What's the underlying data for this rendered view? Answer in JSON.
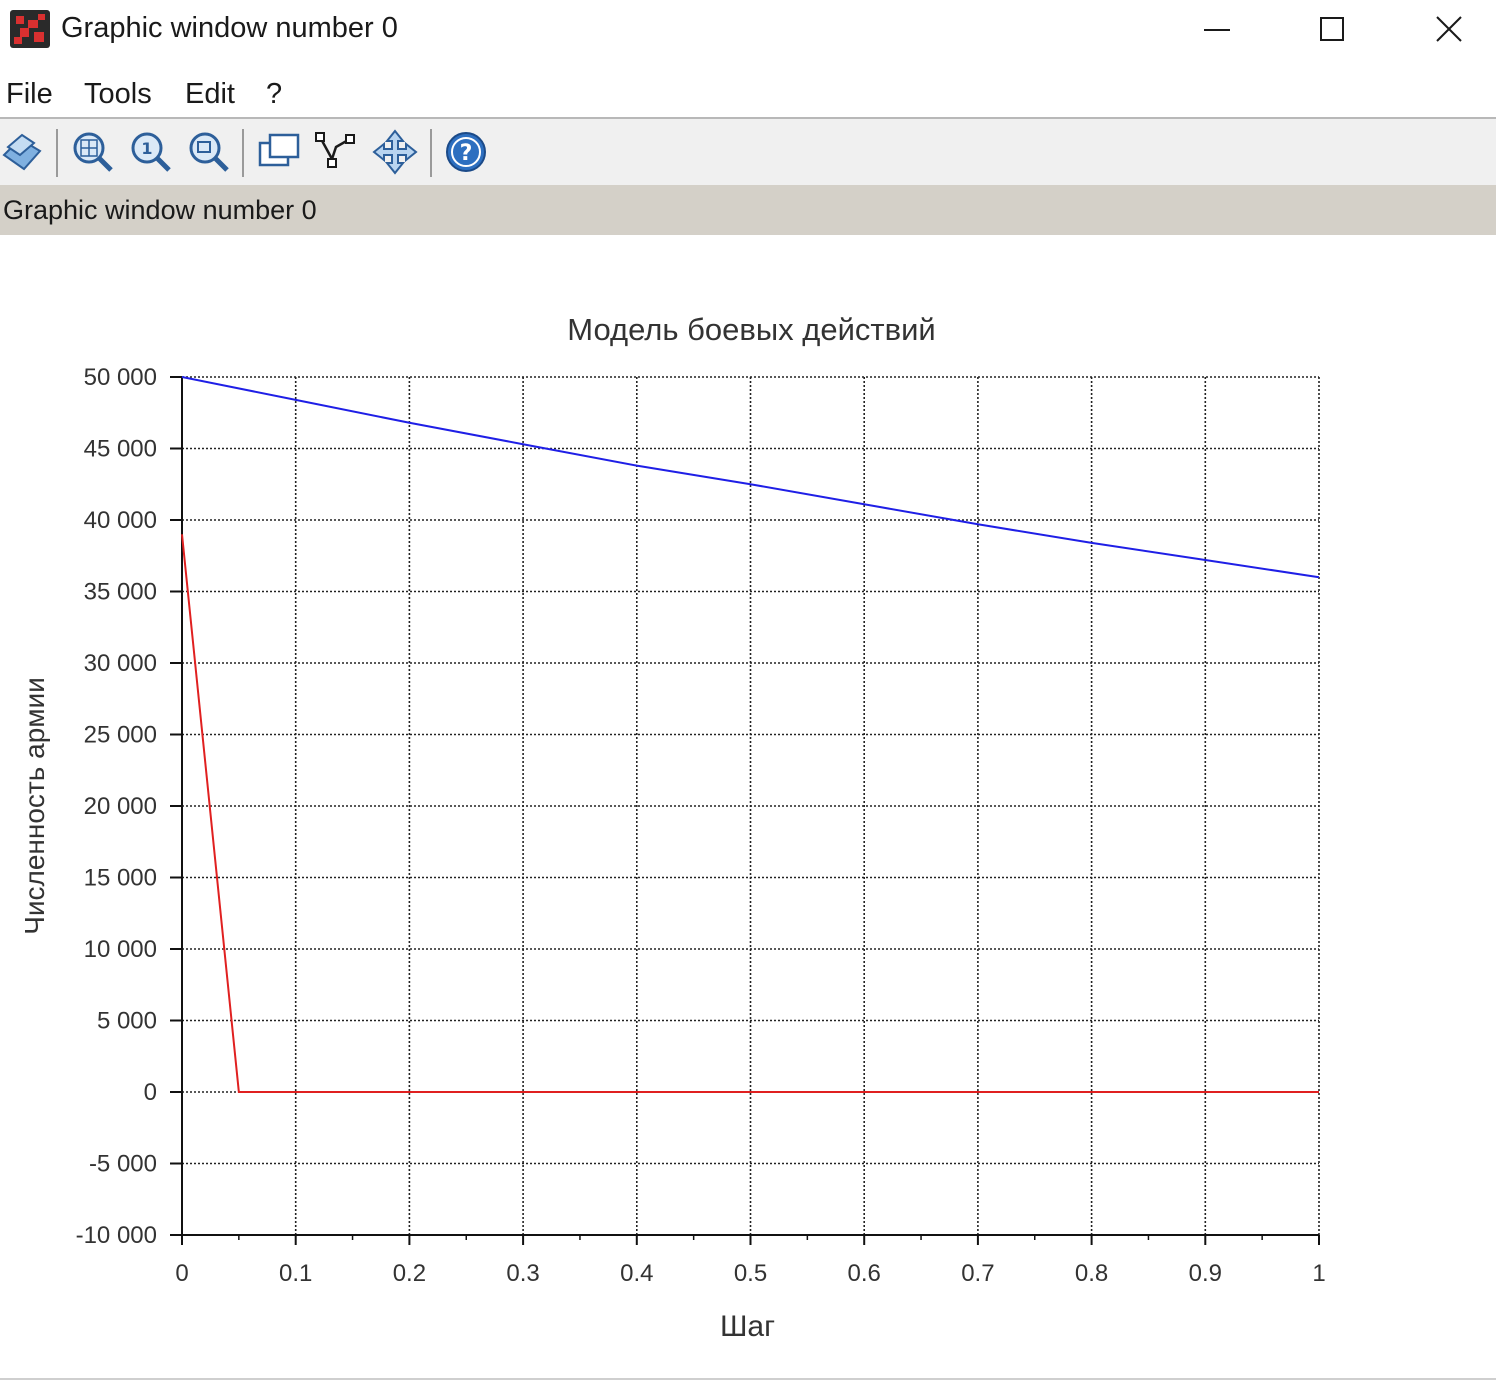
{
  "window": {
    "title": "Graphic window number 0"
  },
  "menu": {
    "items": [
      "File",
      "Tools",
      "Edit",
      "?"
    ]
  },
  "toolbar": {
    "icons": [
      "datatip-icon",
      "zoom-area-icon",
      "zoom-reset-icon",
      "zoom-icon",
      "figure-properties-icon",
      "curve-editor-icon",
      "pan-icon",
      "help-icon"
    ]
  },
  "infobar": {
    "text": "Graphic window number 0"
  },
  "colors": {
    "series_1": "#1f1fe6",
    "series_2": "#e02020",
    "grid": "#222222",
    "infobar_bg": "#d4d0c8"
  },
  "chart_data": {
    "type": "line",
    "title": "Модель боевых действий",
    "xlabel": "Шаг",
    "ylabel": "Численность армии",
    "xlim": [
      0,
      1
    ],
    "ylim": [
      -10000,
      50000
    ],
    "x_ticks": [
      0,
      0.1,
      0.2,
      0.3,
      0.4,
      0.5,
      0.6,
      0.7,
      0.8,
      0.9,
      1
    ],
    "x_tick_labels": [
      "0",
      "0.1",
      "0.2",
      "0.3",
      "0.4",
      "0.5",
      "0.6",
      "0.7",
      "0.8",
      "0.9",
      "1"
    ],
    "y_ticks": [
      50000,
      45000,
      40000,
      35000,
      30000,
      25000,
      20000,
      15000,
      10000,
      5000,
      0,
      -5000,
      -10000
    ],
    "y_tick_labels": [
      "50 000",
      "45 000",
      "40 000",
      "35 000",
      "30 000",
      "25 000",
      "20 000",
      "15 000",
      "10 000",
      "5 000",
      "0",
      "-5 000",
      "-10 000"
    ],
    "grid": true,
    "series": [
      {
        "color": "#1f1fe6",
        "x": [
          0,
          0.1,
          0.2,
          0.3,
          0.4,
          0.5,
          0.6,
          0.7,
          0.8,
          0.9,
          1
        ],
        "y": [
          50000,
          48400,
          46800,
          45300,
          43800,
          42500,
          41100,
          39700,
          38400,
          37200,
          36000
        ]
      },
      {
        "color": "#e02020",
        "x": [
          0,
          0.05,
          0.1,
          0.2,
          0.3,
          0.4,
          0.5,
          0.6,
          0.7,
          0.8,
          0.9,
          1
        ],
        "y": [
          39000,
          0,
          0,
          0,
          0,
          0,
          0,
          0,
          0,
          0,
          0,
          0
        ]
      }
    ]
  }
}
